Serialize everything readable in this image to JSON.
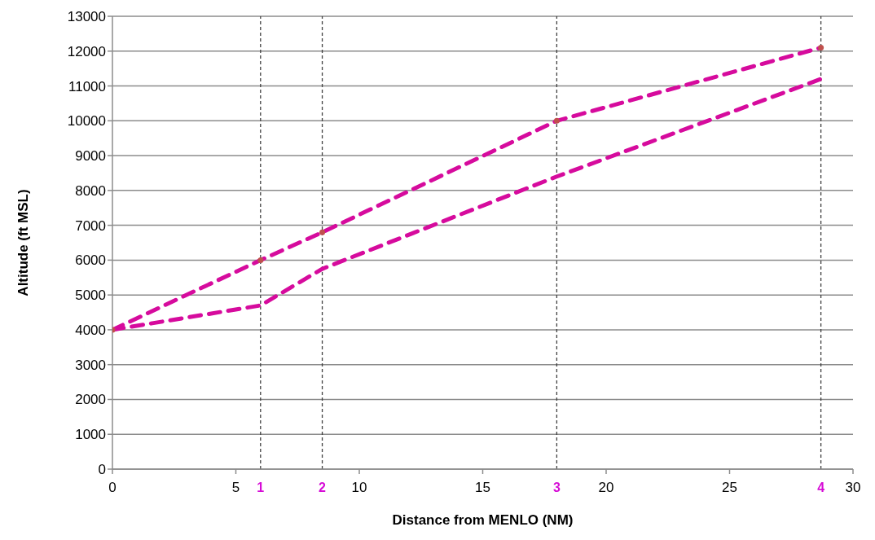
{
  "chart_data": {
    "type": "line",
    "xlabel": "Distance from MENLO (NM)",
    "ylabel": "Altitude (ft MSL)",
    "xlim": [
      0,
      30
    ],
    "xticks": [
      0,
      5,
      10,
      15,
      20,
      25,
      30
    ],
    "ylim": [
      0,
      13000
    ],
    "yticks": [
      0,
      1000,
      2000,
      3000,
      4000,
      5000,
      6000,
      7000,
      8000,
      9000,
      10000,
      11000,
      12000,
      13000
    ],
    "grid": "y",
    "legend": false,
    "line_style": "dashed",
    "series": [
      {
        "color": "#d60b9d",
        "x": [
          0,
          6,
          8.5,
          18,
          28.7
        ],
        "values": [
          4000,
          6000,
          6800,
          10000,
          12100
        ]
      },
      {
        "color": "#d60b9d",
        "x": [
          0,
          6,
          8.5,
          18,
          28.7
        ],
        "values": [
          4000,
          4700,
          5750,
          8400,
          11200
        ]
      },
      {
        "type": "scatter",
        "marker": "circle",
        "color": "#c0504d",
        "x": [
          0,
          6,
          8.5,
          18,
          28.7
        ],
        "values": [
          4000,
          6000,
          6800,
          10000,
          12100
        ]
      }
    ],
    "ref_lines": [
      {
        "axis": "x",
        "value": 6,
        "color": "#404040",
        "line_style": "dashed"
      },
      {
        "axis": "x",
        "value": 8.5,
        "color": "#404040",
        "line_style": "dashed"
      },
      {
        "axis": "x",
        "value": 18,
        "color": "#404040",
        "line_style": "dashed"
      },
      {
        "axis": "x",
        "value": 28.7,
        "color": "#404040",
        "line_style": "dashed"
      }
    ],
    "annotations": [
      "1",
      "2",
      "3",
      "4"
    ]
  }
}
